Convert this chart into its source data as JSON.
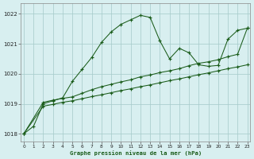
{
  "title": "Graphe pression niveau de la mer (hPa)",
  "bg_color": "#d8eff0",
  "grid_color": "#a8cccc",
  "line_color": "#1a5c1a",
  "xlim": [
    -0.3,
    23.3
  ],
  "ylim": [
    1017.75,
    1022.35
  ],
  "yticks": [
    1018,
    1019,
    1020,
    1021,
    1022
  ],
  "xticks": [
    0,
    1,
    2,
    3,
    4,
    5,
    6,
    7,
    8,
    9,
    10,
    11,
    12,
    13,
    14,
    15,
    16,
    17,
    18,
    19,
    20,
    21,
    22,
    23
  ],
  "line1_x": [
    0,
    1,
    2,
    3,
    4,
    5,
    6,
    7,
    8,
    9,
    10,
    11,
    12,
    13,
    14,
    15,
    16,
    17,
    18,
    19,
    20,
    21,
    22,
    23
  ],
  "line1_y": [
    1018.0,
    1018.25,
    1019.0,
    1019.1,
    1019.2,
    1019.75,
    1020.15,
    1020.55,
    1021.05,
    1021.4,
    1021.65,
    1021.8,
    1021.95,
    1021.88,
    1021.1,
    1020.5,
    1020.85,
    1020.7,
    1020.3,
    1020.25,
    1020.28,
    1021.15,
    1021.45,
    1021.52
  ],
  "line2_x": [
    0,
    2,
    3,
    4,
    5,
    6,
    7,
    8,
    9,
    10,
    11,
    12,
    13,
    14,
    15,
    16,
    17,
    18,
    19,
    20,
    21,
    22,
    23
  ],
  "line2_y": [
    1018.0,
    1019.05,
    1019.12,
    1019.18,
    1019.23,
    1019.35,
    1019.47,
    1019.57,
    1019.65,
    1019.73,
    1019.8,
    1019.9,
    1019.96,
    1020.04,
    1020.1,
    1020.17,
    1020.27,
    1020.35,
    1020.4,
    1020.47,
    1020.57,
    1020.65,
    1021.52
  ],
  "line3_x": [
    0,
    2,
    3,
    4,
    5,
    6,
    7,
    8,
    9,
    10,
    11,
    12,
    13,
    14,
    15,
    16,
    17,
    18,
    19,
    20,
    21,
    22,
    23
  ],
  "line3_y": [
    1018.0,
    1018.92,
    1018.98,
    1019.05,
    1019.1,
    1019.17,
    1019.24,
    1019.3,
    1019.37,
    1019.44,
    1019.5,
    1019.57,
    1019.63,
    1019.7,
    1019.77,
    1019.83,
    1019.9,
    1019.97,
    1020.03,
    1020.1,
    1020.17,
    1020.23,
    1020.3
  ]
}
